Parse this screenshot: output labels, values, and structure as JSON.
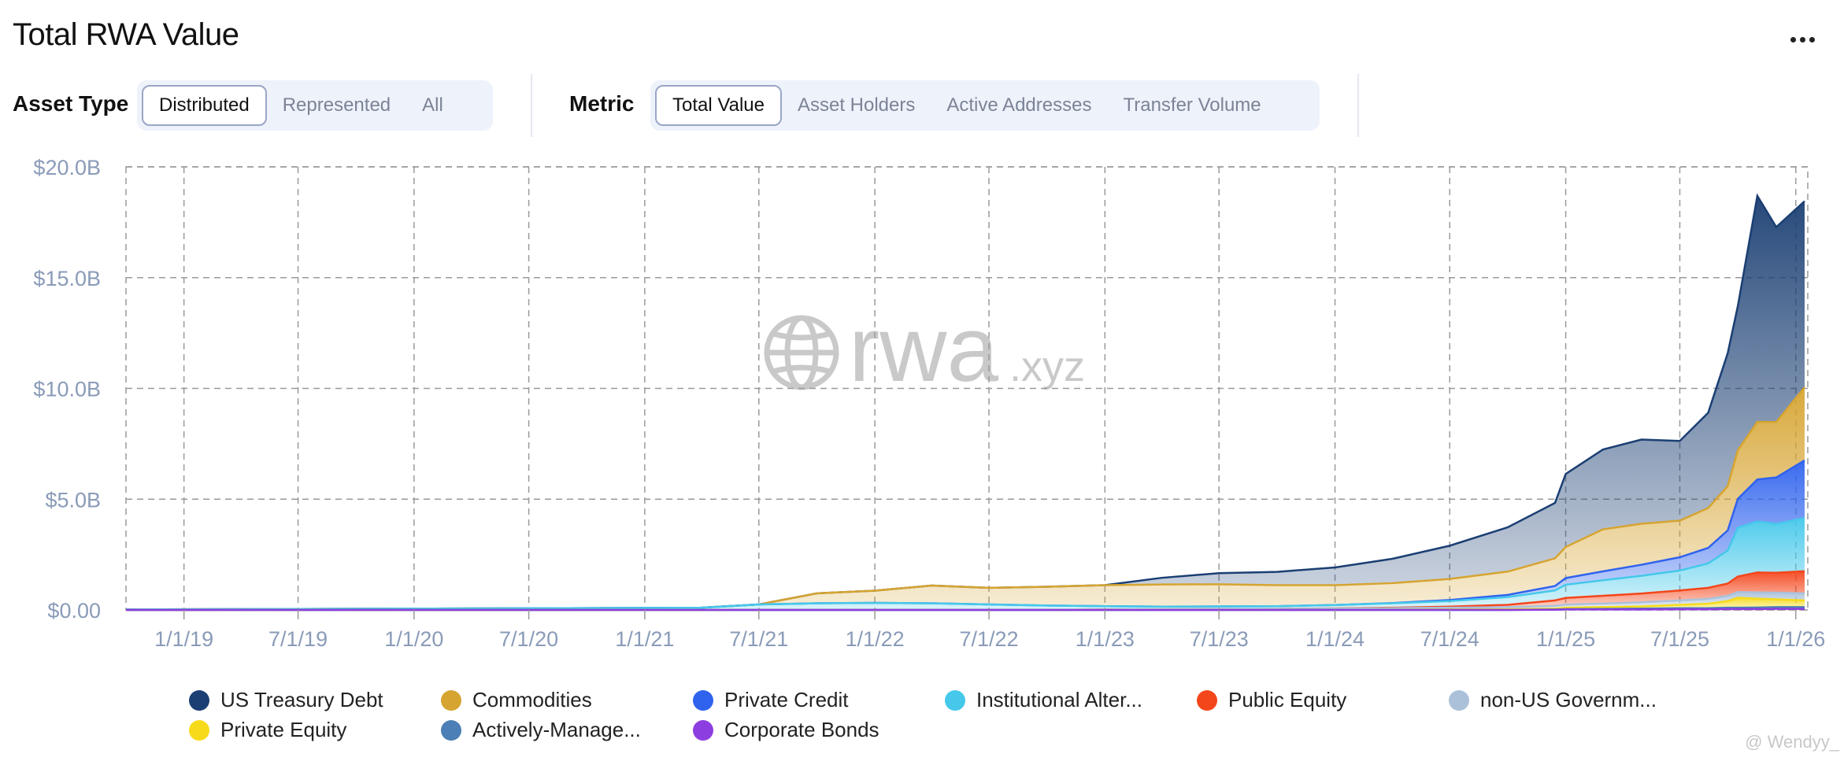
{
  "header": {
    "title": "Total RWA Value"
  },
  "controls": {
    "asset_type_label": "Asset Type",
    "asset_type_options": [
      "Distributed",
      "Represented",
      "All"
    ],
    "metric_label": "Metric",
    "metric_options": [
      "Total Value",
      "Asset Holders",
      "Active Addresses",
      "Transfer Volume"
    ]
  },
  "watermark": {
    "brand": "rwa",
    "suffix": ".xyz"
  },
  "credit": "@ Wendyy_",
  "colors": {
    "us_treasury": "#1b3f73",
    "commodities": "#d6a431",
    "private_credit": "#3a6df0",
    "institutional": "#3ec7e6",
    "public_equity": "#f2502a",
    "non_us_gov": "#a9bfd9",
    "private_equity": "#f5d524",
    "actively_managed": "#5185b8",
    "corporate_bonds": "#8a3fd8"
  },
  "legend": [
    {
      "label": "US Treasury Debt",
      "color": "#1b3f73"
    },
    {
      "label": "Commodities",
      "color": "#d6a431"
    },
    {
      "label": "Private Credit",
      "color": "#2f63ee"
    },
    {
      "label": "Institutional Alter...",
      "color": "#45c8ea"
    },
    {
      "label": "Public Equity",
      "color": "#f4461b"
    },
    {
      "label": "non-US Governm...",
      "color": "#abc1da"
    },
    {
      "label": "Private Equity",
      "color": "#f7db1a"
    },
    {
      "label": "Actively-Manage...",
      "color": "#4b7fb5"
    },
    {
      "label": "Corporate Bonds",
      "color": "#8d3ee0"
    }
  ],
  "chart_data": {
    "type": "area",
    "stacked": true,
    "title": "Total RWA Value",
    "ylim": [
      0,
      20
    ],
    "yticks": [
      "$0.00",
      "$5.0B",
      "$10.0B",
      "$15.0B",
      "$20.0B"
    ],
    "ytick_values": [
      0,
      5,
      10,
      15,
      20
    ],
    "xticks": [
      "1/1/19",
      "7/1/19",
      "1/1/20",
      "7/1/20",
      "1/1/21",
      "7/1/21",
      "1/1/22",
      "7/1/22",
      "1/1/23",
      "7/1/23",
      "1/1/24",
      "7/1/24",
      "1/1/25",
      "7/1/25",
      "1/1/26"
    ],
    "xtick_dates": [
      "2019-01-01",
      "2019-07-01",
      "2020-01-01",
      "2020-07-01",
      "2021-01-01",
      "2021-07-01",
      "2022-01-01",
      "2022-07-01",
      "2023-01-01",
      "2023-07-01",
      "2024-01-01",
      "2024-07-01",
      "2025-01-01",
      "2025-07-01",
      "2026-01-01"
    ],
    "xlim": [
      "2018-10-01",
      "2026-01-20"
    ],
    "grid": true,
    "legend_position": "bottom",
    "unit": "billions USD",
    "x": [
      "2018-10-01",
      "2021-04-01",
      "2021-07-01",
      "2021-10-01",
      "2022-01-01",
      "2022-04-01",
      "2022-07-01",
      "2022-10-01",
      "2023-01-01",
      "2023-04-01",
      "2023-07-01",
      "2023-10-01",
      "2024-01-01",
      "2024-04-01",
      "2024-07-01",
      "2024-10-01",
      "2024-12-15",
      "2025-01-01",
      "2025-03-01",
      "2025-05-01",
      "2025-07-01",
      "2025-08-15",
      "2025-09-15",
      "2025-10-01",
      "2025-11-01",
      "2025-12-01",
      "2026-01-15"
    ],
    "series": [
      {
        "name": "Corporate Bonds",
        "values": [
          0,
          0,
          0,
          0,
          0,
          0,
          0,
          0,
          0,
          0,
          0,
          0,
          0,
          0,
          0,
          0,
          0.01,
          0.02,
          0.02,
          0.02,
          0.03,
          0.03,
          0.04,
          0.04,
          0.04,
          0.05,
          0.05
        ]
      },
      {
        "name": "Actively-Manage...",
        "values": [
          0,
          0,
          0,
          0,
          0,
          0,
          0,
          0,
          0,
          0,
          0,
          0,
          0,
          0,
          0,
          0,
          0.01,
          0.02,
          0.03,
          0.04,
          0.05,
          0.05,
          0.06,
          0.06,
          0.07,
          0.08,
          0.08
        ]
      },
      {
        "name": "Private Equity",
        "values": [
          0,
          0,
          0,
          0,
          0,
          0,
          0,
          0,
          0,
          0,
          0,
          0,
          0,
          0.01,
          0.02,
          0.03,
          0.04,
          0.06,
          0.08,
          0.1,
          0.15,
          0.2,
          0.3,
          0.45,
          0.4,
          0.35,
          0.3
        ]
      },
      {
        "name": "non-US Governm...",
        "values": [
          0,
          0,
          0,
          0,
          0,
          0,
          0,
          0,
          0.02,
          0.03,
          0.04,
          0.05,
          0.06,
          0.07,
          0.08,
          0.1,
          0.12,
          0.14,
          0.16,
          0.18,
          0.2,
          0.22,
          0.24,
          0.26,
          0.28,
          0.3,
          0.32
        ]
      },
      {
        "name": "Public Equity",
        "values": [
          0,
          0,
          0,
          0,
          0,
          0,
          0,
          0,
          0,
          0,
          0,
          0,
          0.01,
          0.02,
          0.05,
          0.1,
          0.25,
          0.3,
          0.35,
          0.4,
          0.45,
          0.5,
          0.55,
          0.7,
          0.9,
          0.9,
          1.0
        ]
      },
      {
        "name": "Institutional Alter...",
        "values": [
          0.02,
          0.1,
          0.25,
          0.3,
          0.32,
          0.3,
          0.25,
          0.2,
          0.15,
          0.12,
          0.12,
          0.12,
          0.15,
          0.2,
          0.25,
          0.35,
          0.45,
          0.6,
          0.7,
          0.8,
          0.9,
          1.1,
          1.5,
          2.2,
          2.3,
          2.2,
          2.4
        ]
      },
      {
        "name": "Private Credit",
        "values": [
          0,
          0,
          0,
          0,
          0,
          0,
          0,
          0,
          0,
          0,
          0,
          0,
          0,
          0.01,
          0.05,
          0.1,
          0.2,
          0.3,
          0.4,
          0.5,
          0.6,
          0.7,
          0.9,
          1.3,
          1.9,
          2.1,
          2.6
        ]
      },
      {
        "name": "Commodities",
        "values": [
          0,
          0,
          0,
          0.45,
          0.55,
          0.8,
          0.75,
          0.85,
          0.95,
          1.0,
          1.0,
          0.95,
          0.9,
          0.9,
          0.95,
          1.05,
          1.25,
          1.4,
          1.9,
          1.85,
          1.65,
          1.8,
          2.0,
          2.2,
          2.6,
          2.5,
          3.3
        ]
      },
      {
        "name": "US Treasury Debt",
        "values": [
          0,
          0,
          0,
          0,
          0,
          0,
          0,
          0,
          0,
          0.3,
          0.5,
          0.6,
          0.8,
          1.1,
          1.5,
          2.0,
          2.5,
          3.3,
          3.6,
          3.8,
          3.6,
          4.3,
          6.0,
          6.5,
          10.2,
          8.8,
          8.4
        ]
      }
    ]
  }
}
